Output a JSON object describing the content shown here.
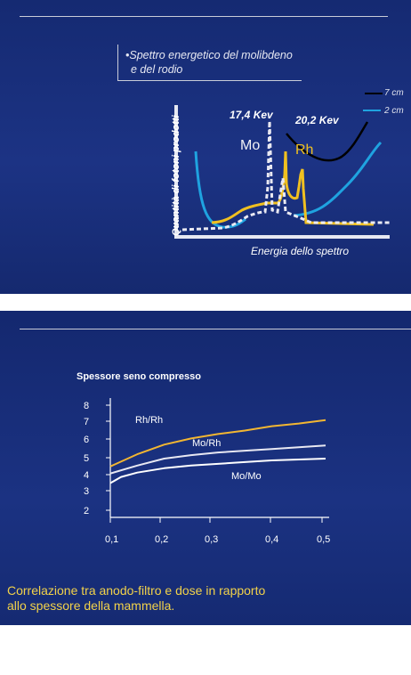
{
  "slide1": {
    "title_line1": "•Spettro energetico del molibdeno",
    "title_line2": "e del rodio",
    "y_axis_label": "Quantità di fotoni prodotti",
    "x_axis_label": "Energia dello spettro",
    "annotations": {
      "peak_mo": "17,4 Kev",
      "peak_rh": "20,2 Kev",
      "mo": "Mo",
      "rh": "Rh"
    },
    "legend": [
      {
        "label": "7 cm",
        "color": "#000000"
      },
      {
        "label": "2 cm",
        "color": "#1fa3e0"
      }
    ],
    "colors": {
      "mo_spectrum": "#e9e9f2",
      "rh_spectrum": "#f0c020",
      "attenuation_7cm": "#000000",
      "attenuation_2cm": "#1fa3e0"
    }
  },
  "slide2": {
    "chart_title": "Spessore seno compresso",
    "caption_line1": "Correlazione tra anodo-filtro e dose in rapporto",
    "caption_line2": "allo spessore della mammella."
  },
  "chart_data": {
    "type": "line",
    "title": "Spessore seno compresso",
    "y_ticks": [
      "8",
      "7",
      "6",
      "5",
      "4",
      "3",
      "2"
    ],
    "x_ticks": [
      "0,1",
      "0,2",
      "0,3",
      "0,4",
      "0,5"
    ],
    "series": [
      {
        "name": "Rh/Rh",
        "color": "#f2b632",
        "points": [
          [
            0.1,
            4.5
          ],
          [
            0.15,
            5.2
          ],
          [
            0.2,
            5.75
          ],
          [
            0.25,
            6.1
          ],
          [
            0.3,
            6.35
          ],
          [
            0.35,
            6.55
          ],
          [
            0.4,
            6.8
          ],
          [
            0.45,
            6.95
          ],
          [
            0.5,
            7.15
          ]
        ]
      },
      {
        "name": "Mo/Rh",
        "color": "#e8e8f2",
        "points": [
          [
            0.1,
            4.1
          ],
          [
            0.15,
            4.55
          ],
          [
            0.2,
            4.95
          ],
          [
            0.25,
            5.15
          ],
          [
            0.3,
            5.3
          ],
          [
            0.35,
            5.4
          ],
          [
            0.4,
            5.5
          ],
          [
            0.45,
            5.6
          ],
          [
            0.5,
            5.7
          ]
        ]
      },
      {
        "name": "Mo/Mo",
        "color": "#ffffff",
        "points": [
          [
            0.1,
            3.55
          ],
          [
            0.12,
            3.9
          ],
          [
            0.15,
            4.15
          ],
          [
            0.2,
            4.4
          ],
          [
            0.25,
            4.55
          ],
          [
            0.3,
            4.65
          ],
          [
            0.35,
            4.75
          ],
          [
            0.4,
            4.85
          ],
          [
            0.45,
            4.9
          ],
          [
            0.5,
            4.95
          ]
        ]
      }
    ]
  }
}
